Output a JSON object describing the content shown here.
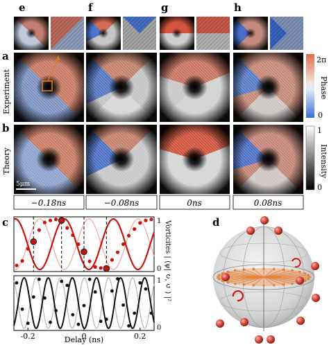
{
  "top_letters": [
    "e",
    "f",
    "g",
    "h"
  ],
  "row_letters": {
    "a": "a",
    "b": "b",
    "c": "c",
    "d": "d"
  },
  "row_labels": {
    "experiment": "Experiment",
    "theory": "Theory"
  },
  "scale_bar": "5μm",
  "delays": [
    "−0.18ns",
    "−0.08ns",
    "0ns",
    "0.08ns"
  ],
  "phase_bar": {
    "label": "Phase",
    "top": "2π",
    "bottom": "0"
  },
  "intensity_bar": {
    "label": "Intensity",
    "top": "1",
    "bottom": "0"
  },
  "panel_c": {
    "ylabel": "Vorticites | ⟨ψ| ↻, ↺ ⟩ |²",
    "right_ticks_top": [
      "1",
      "0"
    ],
    "right_ticks_bottom": [
      "1",
      "0"
    ]
  },
  "colors": {
    "phase_high": "#d9694a",
    "phase_low": "#3f73d6",
    "red": "#c8140d",
    "pink": "#f0a79f",
    "gray": "#b5b5b5",
    "dark": "#111111",
    "orange": "#e07a22"
  },
  "chart_data": [
    {
      "type": "scatter",
      "panel": "c-top",
      "x": [
        -0.24,
        -0.22,
        -0.2,
        -0.18,
        -0.16,
        -0.14,
        -0.12,
        -0.1,
        -0.08,
        -0.06,
        -0.04,
        -0.02,
        0.0,
        0.02,
        0.04,
        0.06,
        0.08,
        0.1,
        0.12,
        0.14,
        0.16,
        0.18,
        0.2,
        0.22,
        0.24
      ],
      "series": [
        {
          "values": [
            0.08,
            0.17,
            0.41,
            0.58,
            0.78,
            0.93,
            0.97,
            0.99,
            0.97,
            0.82,
            0.68,
            0.5,
            0.33,
            0.16,
            0.05,
            0.03,
            0.04,
            0.19,
            0.34,
            0.5,
            0.67,
            0.8,
            0.92,
            0.97,
            0.99
          ]
        }
      ],
      "ylim": [
        0,
        1
      ]
    },
    {
      "type": "scatter",
      "panel": "c-bottom",
      "x": [
        -0.24,
        -0.22,
        -0.2,
        -0.18,
        -0.16,
        -0.14,
        -0.12,
        -0.1,
        -0.08,
        -0.06,
        -0.04,
        -0.02,
        0.0,
        0.02,
        0.04,
        0.06,
        0.08,
        0.1,
        0.12,
        0.14,
        0.16,
        0.18,
        0.2,
        0.22,
        0.24
      ],
      "series": [
        {
          "values": [
            0.9,
            0.38,
            0.1,
            0.62,
            0.97,
            0.6,
            0.12,
            0.35,
            0.93,
            0.85,
            0.27,
            0.08,
            0.45,
            0.97,
            0.72,
            0.14,
            0.18,
            0.74,
            0.98,
            0.46,
            0.05,
            0.3,
            0.9,
            0.78,
            0.3
          ]
        }
      ],
      "xlabel": "Delay (ns)",
      "xticks": [
        "-0.2",
        "0",
        "0.2"
      ],
      "xlim": [
        -0.25,
        0.25
      ],
      "ylim": [
        0,
        1
      ]
    }
  ]
}
